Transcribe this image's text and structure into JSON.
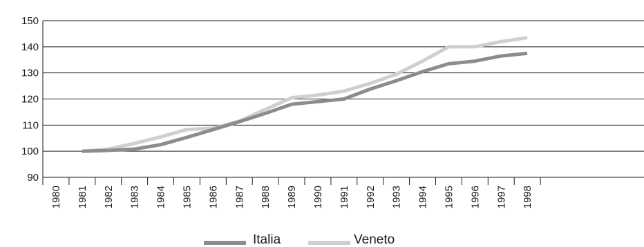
{
  "chart_data": {
    "type": "line",
    "title": "",
    "xlabel": "",
    "ylabel": "",
    "x": [
      "1980",
      "1981",
      "1982",
      "1983",
      "1984",
      "1985",
      "1986",
      "1987",
      "1988",
      "1989",
      "1990",
      "1991",
      "1992",
      "1993",
      "1994",
      "1995",
      "1996",
      "1997",
      "1998"
    ],
    "ylim": [
      90,
      150
    ],
    "yticks": [
      90,
      100,
      110,
      120,
      130,
      140,
      150
    ],
    "grid": "horizontal",
    "legend_position": "bottom",
    "series": [
      {
        "name": "Italia",
        "color": "#8c8c8c",
        "values": [
          null,
          100,
          100.3,
          100.8,
          102.5,
          105.3,
          108.3,
          111.3,
          114.5,
          118,
          119,
          120,
          123.8,
          127,
          130.5,
          133.5,
          134.5,
          136.5,
          137.5
        ]
      },
      {
        "name": "Veneto",
        "color": "#cfcfcf",
        "values": [
          null,
          100,
          100.8,
          103,
          105.5,
          108.3,
          108.8,
          111.5,
          116,
          120.5,
          121.5,
          123,
          126,
          129.5,
          134.5,
          140,
          140,
          142,
          143.5
        ]
      }
    ]
  }
}
